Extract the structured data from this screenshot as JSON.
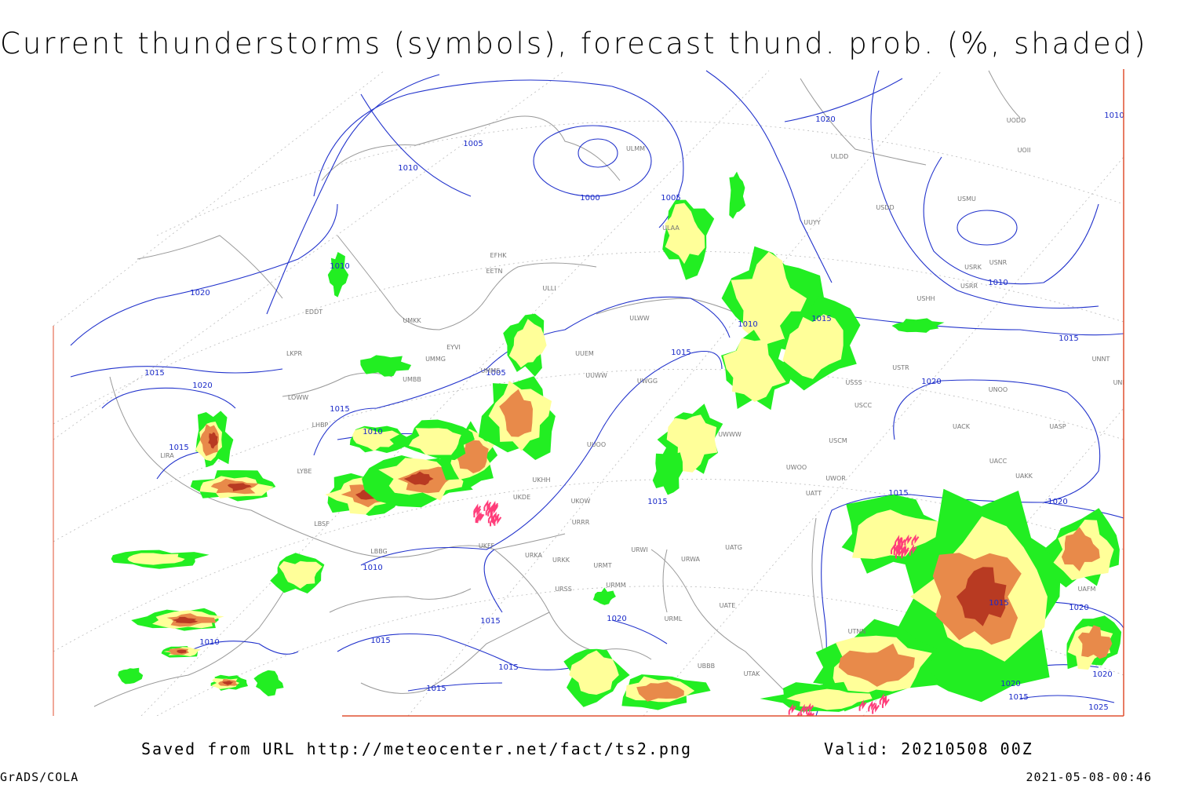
{
  "header": {
    "title": "Current thunderstorms (symbols), forecast thund. prob. (%, shaded)"
  },
  "footer": {
    "source": "Saved from URL http://meteocenter.net/fact/ts2.png",
    "valid": "Valid: 20210508 00Z",
    "software": "GrADS/COLA",
    "timestamp": "2021-05-08-00:46"
  },
  "map": {
    "isobar_labels": [
      "1005",
      "1010",
      "1000",
      "1005",
      "1020",
      "1010",
      "1010",
      "1020",
      "1010",
      "1015",
      "1010",
      "1015",
      "1015",
      "1015",
      "1020",
      "1015",
      "1010",
      "1005",
      "1015",
      "1020",
      "1015",
      "1015",
      "1020",
      "1010",
      "1015",
      "1020",
      "1015",
      "1010",
      "1015",
      "1015",
      "1015",
      "1020",
      "1020",
      "1020",
      "1015",
      "1025"
    ],
    "stations": [
      "EFHK",
      "EETN",
      "ULLI",
      "UMKK",
      "EYVI",
      "UMMG",
      "UMMS",
      "UMBB",
      "LOWW",
      "LKPR",
      "EDDT",
      "LHBP",
      "LYBE",
      "LBSF",
      "UUEM",
      "UUWW",
      "UWGG",
      "UUOO",
      "UKHH",
      "UKDE",
      "UKOW",
      "URRR",
      "UKFF",
      "URKA",
      "URKK",
      "URMT",
      "URMM",
      "URSS",
      "UWWW",
      "ULWW",
      "ULAA",
      "ULDD",
      "UUYY",
      "USSS",
      "USCC",
      "USCM",
      "UWOO",
      "UWOR",
      "UATT",
      "UATG",
      "URWA",
      "UATE",
      "URML",
      "UBBB",
      "UTAK",
      "UTNN",
      "UACK",
      "UACC",
      "UAKK",
      "UASP",
      "UNOO",
      "UNNT",
      "UNBB",
      "USTR",
      "USHH",
      "USRR",
      "USNR",
      "USRK",
      "USMU",
      "USDD",
      "UOII",
      "UODD",
      "ULMM",
      "LIRA",
      "LBBG",
      "URWI",
      "UAFM"
    ]
  }
}
